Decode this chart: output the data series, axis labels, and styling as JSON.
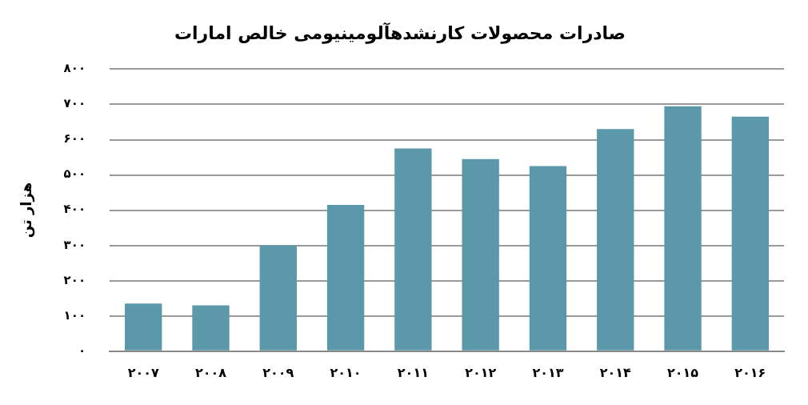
{
  "chart_data": {
    "type": "bar",
    "title": "صادرات محصولات کارنشدهآلومینیومی خالص امارات",
    "ylabel": "هزار تن",
    "categories": [
      "۲۰۰۷",
      "۲۰۰۸",
      "۲۰۰۹",
      "۲۰۱۰",
      "۲۰۱۱",
      "۲۰۱۲",
      "۲۰۱۳",
      "۲۰۱۴",
      "۲۰۱۵",
      "۲۰۱۶"
    ],
    "values": [
      135,
      130,
      300,
      415,
      575,
      545,
      525,
      630,
      695,
      665
    ],
    "color": "#5b98a9",
    "ylim": [
      0,
      800
    ],
    "yticks": [
      {
        "value": 0,
        "label": "۰"
      },
      {
        "value": 100,
        "label": "۱۰۰"
      },
      {
        "value": 200,
        "label": "۲۰۰"
      },
      {
        "value": 300,
        "label": "۳۰۰"
      },
      {
        "value": 400,
        "label": "۴۰۰"
      },
      {
        "value": 500,
        "label": "۵۰۰"
      },
      {
        "value": 600,
        "label": "۶۰۰"
      },
      {
        "value": 700,
        "label": "۷۰۰"
      },
      {
        "value": 800,
        "label": "۸۰۰"
      }
    ],
    "grid": "y",
    "legend": false
  }
}
